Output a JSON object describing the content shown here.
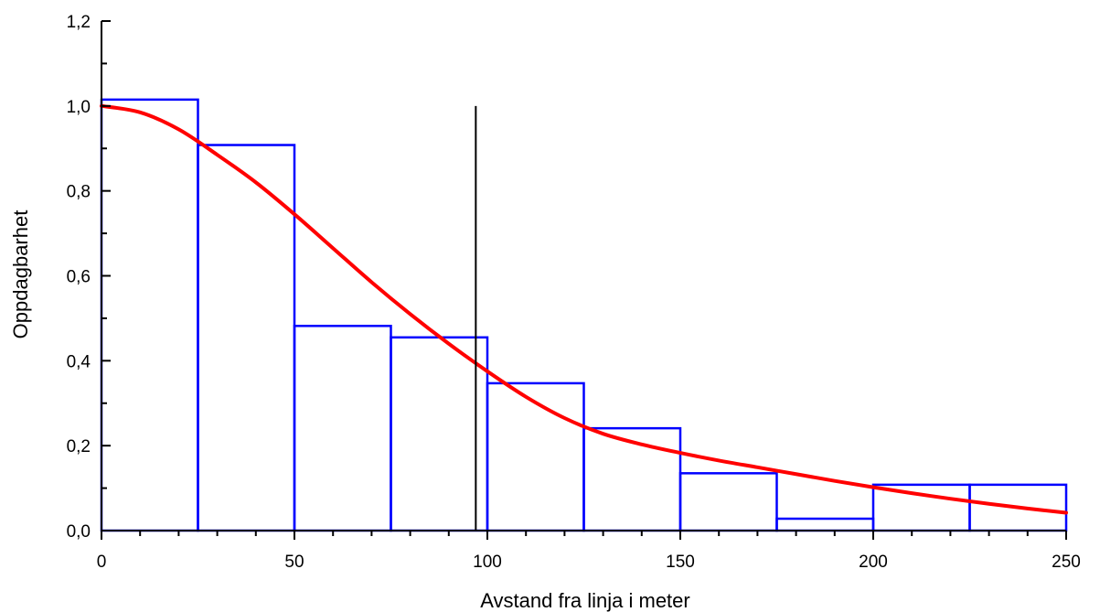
{
  "chart_data": {
    "type": "bar",
    "xlabel": "Avstand fra linja i meter",
    "ylabel": "Oppdagbarhet",
    "xlim": [
      0,
      250
    ],
    "ylim": [
      0,
      1.2
    ],
    "x_ticks": [
      "0",
      "50",
      "100",
      "150",
      "200",
      "250"
    ],
    "y_ticks": [
      "0,0",
      "0,2",
      "0,4",
      "0,6",
      "0,8",
      "1,0",
      "1,2"
    ],
    "grid": false,
    "legend": "none",
    "histogram": {
      "bin_edges": [
        0,
        25,
        50,
        75,
        100,
        125,
        150,
        175,
        200,
        225,
        250
      ],
      "values": [
        1.015,
        0.908,
        0.482,
        0.455,
        0.347,
        0.241,
        0.135,
        0.028,
        0.108,
        0.108
      ],
      "color": "#0000ff"
    },
    "fitted_curve": {
      "x": [
        0,
        10,
        20,
        30,
        40,
        50,
        60,
        70,
        80,
        90,
        100,
        110,
        120,
        130,
        140,
        150,
        160,
        170,
        180,
        190,
        200,
        210,
        220,
        230,
        240,
        250
      ],
      "y": [
        1.0,
        0.985,
        0.945,
        0.885,
        0.82,
        0.745,
        0.665,
        0.585,
        0.51,
        0.44,
        0.375,
        0.315,
        0.265,
        0.228,
        0.203,
        0.183,
        0.165,
        0.149,
        0.133,
        0.117,
        0.102,
        0.088,
        0.075,
        0.063,
        0.052,
        0.042
      ],
      "color": "#ff0000"
    },
    "reference_line": {
      "x": 97,
      "y_top": 1.0,
      "color": "#000000"
    }
  }
}
